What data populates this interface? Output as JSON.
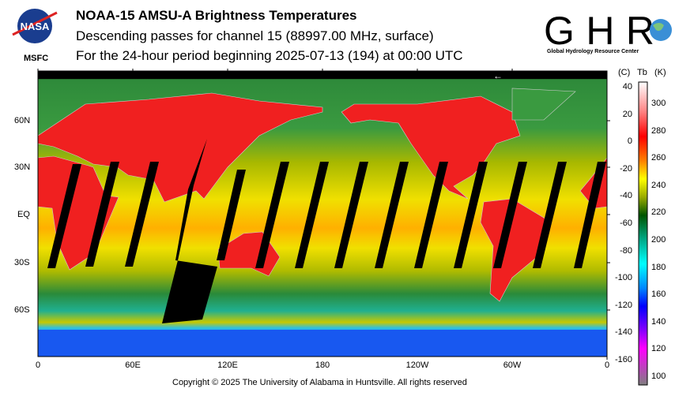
{
  "header": {
    "title": "NOAA-15 AMSU-A Brightness Temperatures",
    "subtitle": "Descending passes for channel 15 (88997.00 MHz, surface)",
    "period": "For the 24-hour period beginning 2025-07-13 (194) at 00:00 UTC"
  },
  "logos": {
    "nasa": "NASA",
    "msfc": "MSFC",
    "ghrc": "GHRC",
    "ghrc_full": "Global Hydrology Resource Center"
  },
  "map": {
    "lat_labels": [
      "60N",
      "30N",
      "EQ",
      "30S",
      "60S"
    ],
    "lon_labels": [
      "0",
      "60E",
      "120E",
      "180",
      "120W",
      "60W",
      "0"
    ],
    "direction_arrow": "←"
  },
  "colorbar": {
    "header_c": "(C)",
    "header_tb": "Tb",
    "header_k": "(K)",
    "celsius_ticks": [
      "40",
      "20",
      "0",
      "-20",
      "-40",
      "-60",
      "-80",
      "-100",
      "-120",
      "-140",
      "-160"
    ],
    "kelvin_ticks": [
      "300",
      "280",
      "260",
      "240",
      "220",
      "200",
      "180",
      "160",
      "140",
      "120",
      "100"
    ],
    "kelvin_range": [
      95,
      315
    ],
    "colors": [
      "#ffffff",
      "#ff8080",
      "#ff0000",
      "#ff8000",
      "#ffff00",
      "#99aa00",
      "#005500",
      "#00aa88",
      "#00ffff",
      "#0088ff",
      "#0000ff",
      "#8800ff",
      "#ff00ff",
      "#808080"
    ]
  },
  "footer": {
    "copyright": "Copyright © 2025 The University of Alabama in Huntsville.  All rights reserved"
  }
}
